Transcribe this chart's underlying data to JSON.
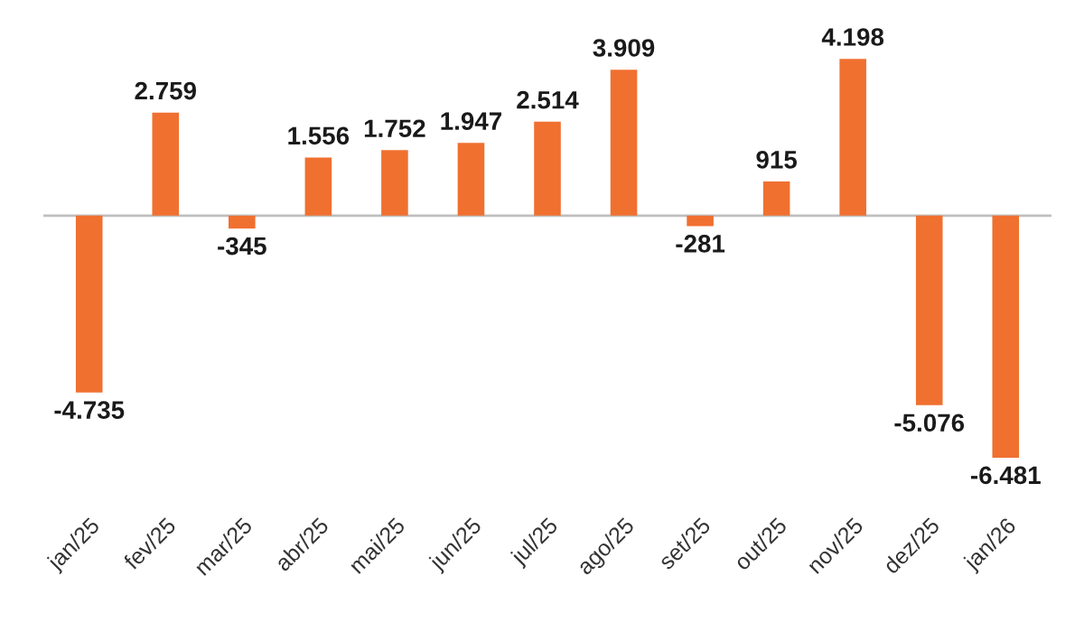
{
  "chart_data": {
    "type": "bar",
    "categories": [
      "jan/25",
      "fev/25",
      "mar/25",
      "abr/25",
      "mai/25",
      "jun/25",
      "jul/25",
      "ago/25",
      "set/25",
      "out/25",
      "nov/25",
      "dez/25",
      "jan/26"
    ],
    "values": [
      -4735,
      2759,
      -345,
      1556,
      1752,
      1947,
      2514,
      3909,
      -281,
      915,
      4198,
      -5076,
      -6481
    ],
    "value_labels": [
      "-4.735",
      "2.759",
      "-345",
      "1.556",
      "1.752",
      "1.947",
      "2.514",
      "3.909",
      "-281",
      "915",
      "4.198",
      "-5.076",
      "-6.481"
    ],
    "color": "#f07030",
    "grid": false,
    "legend": false
  }
}
